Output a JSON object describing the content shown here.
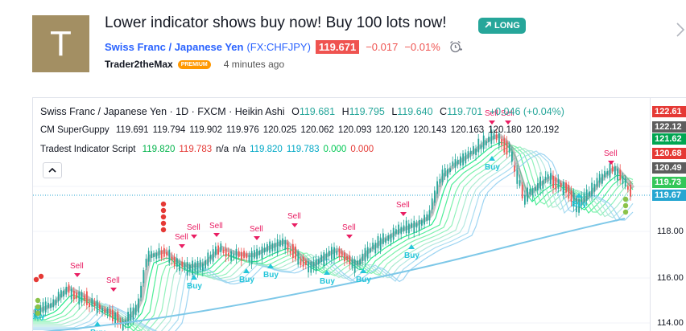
{
  "idea": {
    "avatar_letter": "T",
    "title": "Lower indicator shows buy now! Buy 100 lots now!",
    "badge": "LONG",
    "symbol_name": "Swiss Franc / Japanese Yen",
    "symbol_ticker": "(FX:CHFJPY)",
    "price": "119.671",
    "change": "−0.017",
    "change_pct": "−0.01%",
    "author": "Trader2theMax",
    "author_badge": "PREMIUM",
    "time_ago": "4 minutes ago",
    "icons": [
      "trend-up-arrow-icon",
      "alarm-clock-icon",
      "chevron-right-icon",
      "collapse-icon"
    ]
  },
  "chart": {
    "main_title": "Swiss Franc / Japanese Yen · 1D · FXCM · Heikin Ashi",
    "ohlc": {
      "o_label": "O",
      "o": "119.681",
      "h_label": "H",
      "h": "119.795",
      "l_label": "L",
      "l": "119.640",
      "c_label": "C",
      "c": "119.701",
      "chg": "+0.046 (+0.04%)"
    },
    "indicator1": {
      "name": "CM SuperGuppy",
      "values": [
        "119.691",
        "119.794",
        "119.902",
        "119.976",
        "120.025",
        "120.062",
        "120.093",
        "120.120",
        "120.143",
        "120.163",
        "120.180",
        "120.192"
      ]
    },
    "indicator2": {
      "name": "Tradest Indicator Script",
      "values": [
        {
          "text": "119.820",
          "color": "#00b34a"
        },
        {
          "text": "119.783",
          "color": "#e53935"
        },
        {
          "text": "n/a",
          "color": "#131722"
        },
        {
          "text": "n/a",
          "color": "#131722"
        },
        {
          "text": "119.820",
          "color": "#00a8c6"
        },
        {
          "text": "119.783",
          "color": "#00a8c6"
        },
        {
          "text": "0.000",
          "color": "#00c853"
        },
        {
          "text": "0.000",
          "color": "#e53935"
        }
      ]
    },
    "axis_tags": [
      {
        "text": "122.61",
        "bg": "#e53935"
      },
      {
        "text": "122.12",
        "bg": "#5d5d5d"
      },
      {
        "text": "121.62",
        "bg": "#00a651"
      },
      {
        "text": "120.68",
        "bg": "#e53935"
      },
      {
        "text": "120.49",
        "bg": "#5d5d5d"
      },
      {
        "text": "119.73",
        "bg": "#34c759"
      },
      {
        "text": "119.67",
        "bg": "#26a6d1"
      }
    ],
    "axis_ticks": [
      "118.00",
      "116.00",
      "114.00"
    ],
    "signal_labels": {
      "sell": "Sell",
      "buy": "Buy"
    }
  }
}
